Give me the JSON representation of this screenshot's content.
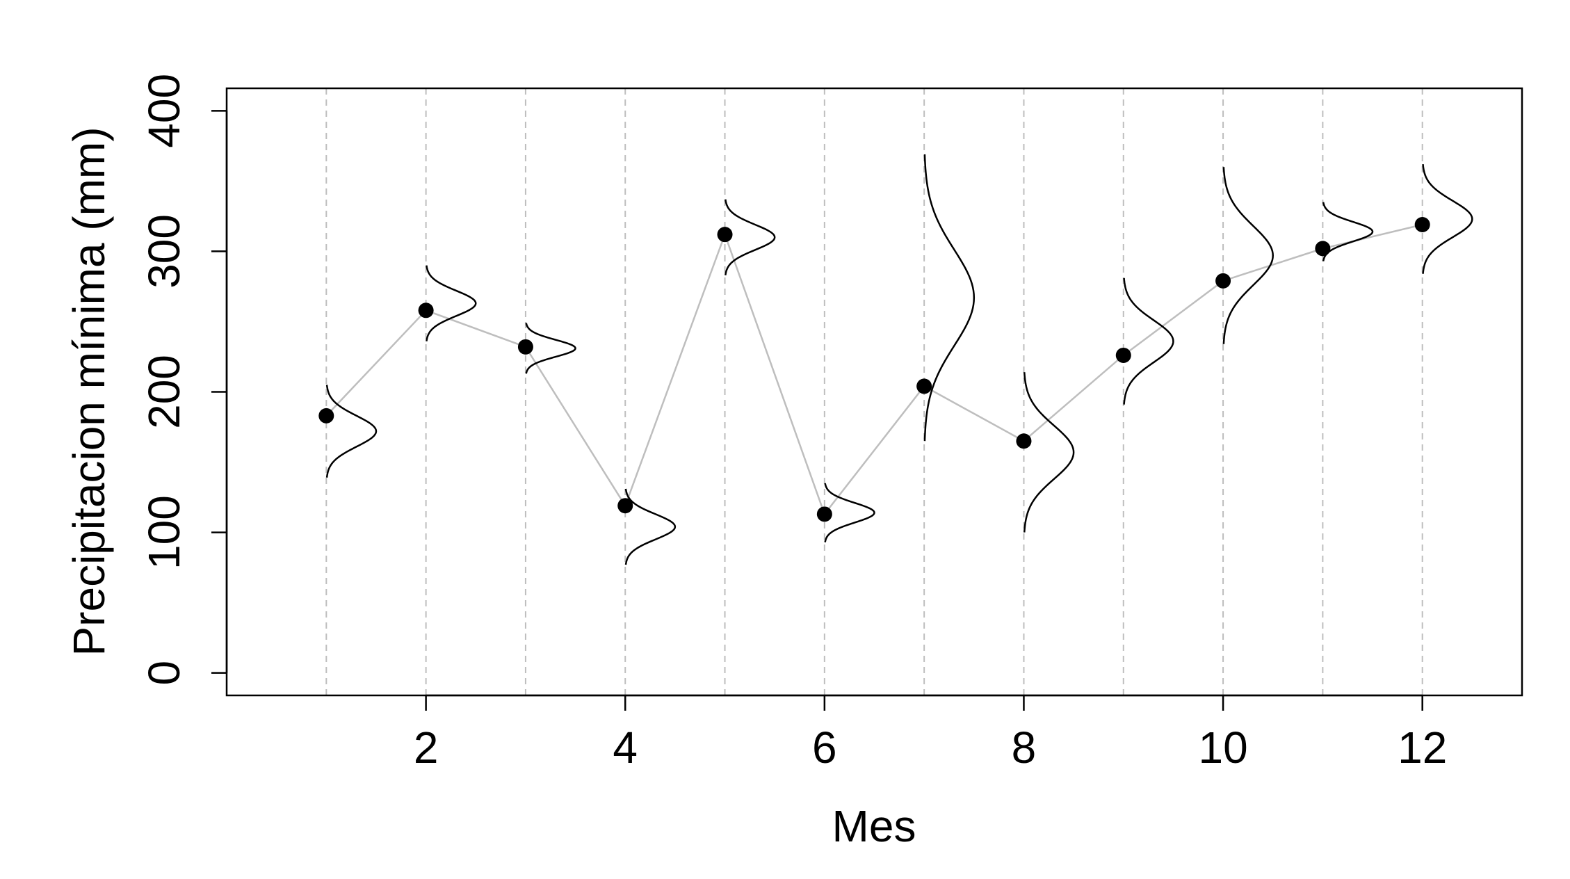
{
  "chart_data": {
    "type": "line",
    "xlabel": "Mes",
    "ylabel": "Precipitacion mínima (mm)",
    "xlim": [
      0.0,
      13.0
    ],
    "ylim": [
      -16,
      416
    ],
    "x_ticks": [
      2,
      4,
      6,
      8,
      10,
      12
    ],
    "y_ticks": [
      0,
      100,
      200,
      300,
      400
    ],
    "grid": "vertical dashed lines at each month",
    "series": [
      {
        "x": [
          1,
          2,
          3,
          4,
          5,
          6,
          7,
          8,
          9,
          10,
          11,
          12
        ],
        "values": [
          183,
          258,
          232,
          119,
          312,
          113,
          204,
          165,
          226,
          279,
          302,
          319
        ]
      }
    ],
    "distributions": [
      {
        "x": 1,
        "mean": 172,
        "sd": 11
      },
      {
        "x": 2,
        "mean": 263,
        "sd": 9
      },
      {
        "x": 3,
        "mean": 231,
        "sd": 6
      },
      {
        "x": 4,
        "mean": 104,
        "sd": 9
      },
      {
        "x": 5,
        "mean": 310,
        "sd": 9
      },
      {
        "x": 6,
        "mean": 114,
        "sd": 7
      },
      {
        "x": 7,
        "mean": 267,
        "sd": 34
      },
      {
        "x": 8,
        "mean": 157,
        "sd": 19
      },
      {
        "x": 9,
        "mean": 236,
        "sd": 15
      },
      {
        "x": 10,
        "mean": 297,
        "sd": 21
      },
      {
        "x": 11,
        "mean": 314,
        "sd": 7
      },
      {
        "x": 12,
        "mean": 323,
        "sd": 13
      }
    ],
    "colors": {
      "points": "#000000",
      "line": "#bebebe",
      "grid": "#bebebe",
      "density": "#000000"
    }
  }
}
